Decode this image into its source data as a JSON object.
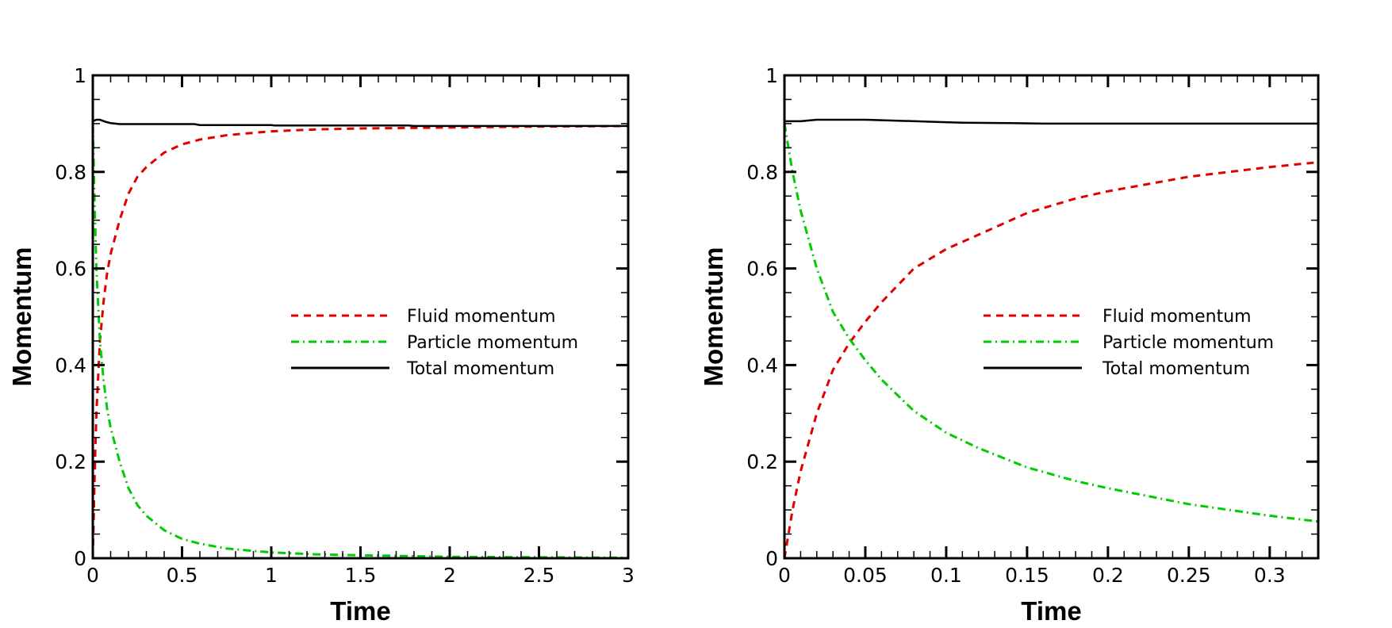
{
  "colors": {
    "fluid": "#e00000",
    "particle": "#00cc00",
    "total": "#000000"
  },
  "chart_data": [
    {
      "type": "line",
      "title": "",
      "xlabel": "Time",
      "ylabel": "Momentum",
      "xlim": [
        0,
        3
      ],
      "ylim": [
        0,
        1
      ],
      "xticks": [
        0,
        0.5,
        1,
        1.5,
        2,
        2.5,
        3
      ],
      "xtick_labels": [
        "0",
        "0.5",
        "1",
        "1.5",
        "2",
        "2.5",
        "3"
      ],
      "x_minor_step": 0.1,
      "yticks": [
        0,
        0.2,
        0.4,
        0.6,
        0.8,
        1
      ],
      "ytick_labels": [
        "0",
        "0.2",
        "0.4",
        "0.6",
        "0.8",
        "1"
      ],
      "y_minor_step": 0.05,
      "grid": false,
      "legend_position": "center-right",
      "series": [
        {
          "name": "Fluid momentum",
          "style": "dashed",
          "color_key": "fluid",
          "x": [
            0,
            0.01,
            0.02,
            0.04,
            0.06,
            0.08,
            0.1,
            0.15,
            0.2,
            0.25,
            0.3,
            0.4,
            0.5,
            0.6,
            0.75,
            1,
            1.25,
            1.5,
            2,
            2.5,
            3
          ],
          "y": [
            0,
            0.17,
            0.3,
            0.45,
            0.53,
            0.59,
            0.63,
            0.7,
            0.755,
            0.79,
            0.81,
            0.84,
            0.857,
            0.867,
            0.876,
            0.884,
            0.888,
            0.89,
            0.892,
            0.894,
            0.895
          ]
        },
        {
          "name": "Particle momentum",
          "style": "dashdot",
          "color_key": "particle",
          "x": [
            0,
            0.01,
            0.02,
            0.04,
            0.06,
            0.08,
            0.1,
            0.15,
            0.2,
            0.25,
            0.3,
            0.4,
            0.5,
            0.6,
            0.75,
            1,
            1.25,
            1.5,
            2,
            2.5,
            3
          ],
          "y": [
            0.9,
            0.73,
            0.6,
            0.45,
            0.37,
            0.31,
            0.27,
            0.2,
            0.145,
            0.11,
            0.088,
            0.058,
            0.04,
            0.03,
            0.02,
            0.012,
            0.008,
            0.006,
            0.003,
            0.002,
            0.001
          ]
        },
        {
          "name": "Total momentum",
          "style": "solid",
          "color_key": "total",
          "x": [
            0,
            0.02,
            0.04,
            0.07,
            0.1,
            0.15,
            0.3,
            0.57,
            0.6,
            1,
            1.02,
            1.5,
            1.77,
            1.8,
            2.5,
            3
          ],
          "y": [
            0.905,
            0.908,
            0.908,
            0.904,
            0.901,
            0.899,
            0.899,
            0.899,
            0.897,
            0.897,
            0.896,
            0.896,
            0.896,
            0.895,
            0.895,
            0.895
          ]
        }
      ]
    },
    {
      "type": "line",
      "title": "",
      "xlabel": "Time",
      "ylabel": "Momentum",
      "xlim": [
        0,
        0.33
      ],
      "ylim": [
        0,
        1
      ],
      "xticks": [
        0,
        0.05,
        0.1,
        0.15,
        0.2,
        0.25,
        0.3
      ],
      "xtick_labels": [
        "0",
        "0.05",
        "0.1",
        "0.15",
        "0.2",
        "0.25",
        "0.3"
      ],
      "x_minor_step": 0.01,
      "yticks": [
        0,
        0.2,
        0.4,
        0.6,
        0.8,
        1
      ],
      "ytick_labels": [
        "0",
        "0.2",
        "0.4",
        "0.6",
        "0.8",
        "1"
      ],
      "y_minor_step": 0.05,
      "grid": false,
      "legend_position": "center-right",
      "series": [
        {
          "name": "Fluid momentum",
          "style": "dashed",
          "color_key": "fluid",
          "x": [
            0,
            0.005,
            0.01,
            0.02,
            0.03,
            0.04,
            0.05,
            0.06,
            0.08,
            0.1,
            0.12,
            0.15,
            0.18,
            0.2,
            0.25,
            0.3,
            0.33
          ],
          "y": [
            0,
            0.1,
            0.18,
            0.3,
            0.39,
            0.445,
            0.49,
            0.53,
            0.6,
            0.64,
            0.67,
            0.715,
            0.745,
            0.76,
            0.79,
            0.81,
            0.82
          ]
        },
        {
          "name": "Particle momentum",
          "style": "dashdot",
          "color_key": "particle",
          "x": [
            0,
            0.005,
            0.01,
            0.02,
            0.03,
            0.04,
            0.05,
            0.06,
            0.08,
            0.1,
            0.12,
            0.15,
            0.18,
            0.2,
            0.25,
            0.3,
            0.33
          ],
          "y": [
            0.9,
            0.8,
            0.72,
            0.6,
            0.51,
            0.455,
            0.41,
            0.37,
            0.305,
            0.26,
            0.228,
            0.188,
            0.16,
            0.145,
            0.112,
            0.088,
            0.076
          ]
        },
        {
          "name": "Total momentum",
          "style": "solid",
          "color_key": "total",
          "x": [
            0,
            0.01,
            0.02,
            0.04,
            0.05,
            0.07,
            0.09,
            0.11,
            0.14,
            0.16,
            0.2,
            0.25,
            0.3,
            0.33
          ],
          "y": [
            0.905,
            0.905,
            0.908,
            0.908,
            0.908,
            0.906,
            0.904,
            0.902,
            0.901,
            0.9,
            0.9,
            0.9,
            0.9,
            0.9
          ]
        }
      ]
    }
  ]
}
